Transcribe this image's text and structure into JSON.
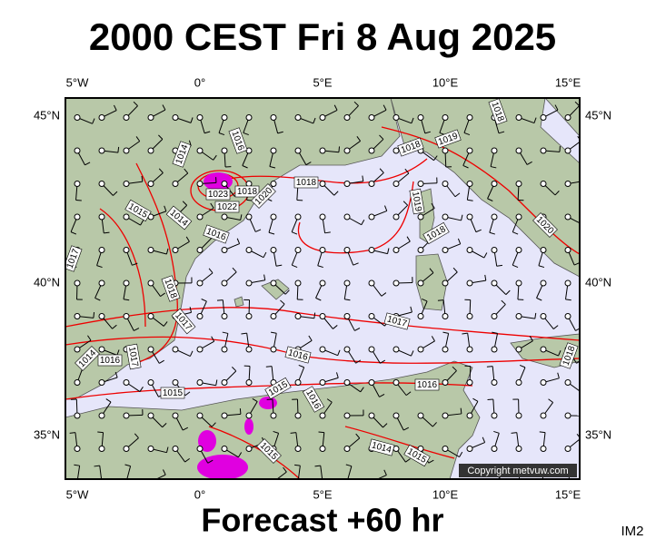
{
  "header": {
    "title": "2000 CEST Fri 8 Aug 2025"
  },
  "footer": {
    "title": "Forecast +60 hr",
    "code": "IM2"
  },
  "map": {
    "copyright": "Copyright metvuw.com",
    "lon_labels": [
      "5°W",
      "0°",
      "5°E",
      "10°E",
      "15°E"
    ],
    "lat_labels": [
      "45°N",
      "40°N",
      "35°N"
    ],
    "isobar_labels": [
      "1014",
      "1016",
      "1018",
      "1018",
      "1019",
      "1018",
      "1015",
      "1014",
      "1016",
      "1022",
      "1023",
      "1018",
      "1020",
      "1019",
      "1018",
      "1020",
      "1017",
      "1018",
      "1017",
      "1017",
      "1016",
      "1014",
      "1016",
      "1017",
      "1018",
      "1015",
      "1015",
      "1016",
      "1016",
      "1015",
      "1014",
      "1015"
    ]
  }
}
